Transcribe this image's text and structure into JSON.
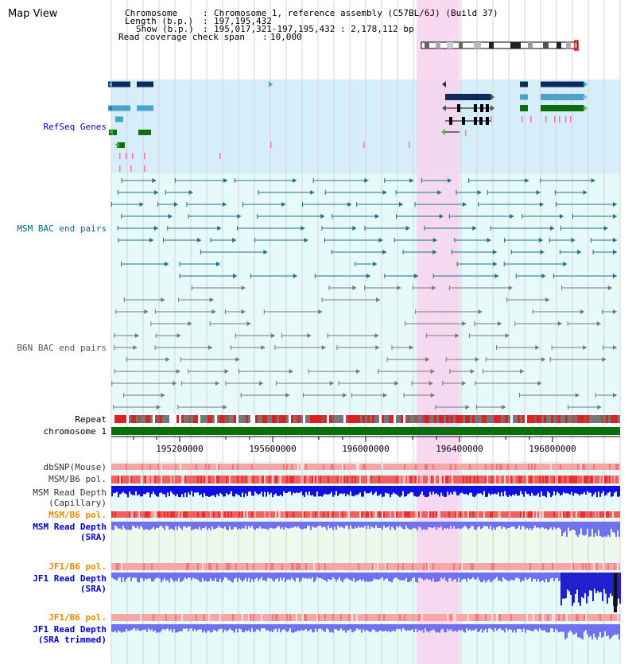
{
  "app_title": "Map View",
  "info": {
    "chromosome_label": "Chromosome",
    "chromosome_value": "Chromosome 1, reference assembly (C57BL/6J) (Build 37)",
    "length_label": "Length (b.p.)",
    "length_value": "197,195,432",
    "show_label": "Show (b.p.)",
    "show_value": "195,017,321-197,195,432 : 2,178,112 bp",
    "coverage_label": "Read coverage check span",
    "coverage_value": "10,000"
  },
  "tracks": {
    "refseq": "RefSeq Genes",
    "msm_bac": "MSM BAC end pairs",
    "b6n_bac": "B6N BAC end pairs",
    "repeat": "Repeat",
    "chromosome": "chromosome 1",
    "dbsnp": "dbSNP(Mouse)",
    "msm_pol": "MSM/B6 pol.",
    "msm_depth_cap_1": "MSM Read Depth",
    "msm_depth_cap_2": "(Capillary)",
    "msm_pol2": "MSM/B6 pol.",
    "msm_depth_sra_1": "MSM Read Depth",
    "msm_depth_sra_2": "(SRA)",
    "jf1_pol": "JF1/B6 pol.",
    "jf1_depth_sra_1": "JF1 Read Depth",
    "jf1_depth_sra_2": "(SRA)",
    "jf1_pol2": "JF1/B6 pol.",
    "jf1_depth_trim_1": "JF1 Read Depth",
    "jf1_depth_trim_2": "(SRA trimmed)"
  },
  "axis_ticks": [
    "195200000",
    "195600000",
    "196000000",
    "196400000",
    "196800000"
  ],
  "colors": {
    "refseq_bg": "#d6eef9",
    "bac_bg": "#e7fafa",
    "highlight": "#f7d2ef",
    "gene_dark": "#0b2a5e",
    "gene_light": "#4aa3c8",
    "gene_green": "#0a6e0a",
    "msm_bac": "#1f6f8b",
    "b6n_bac": "#777777",
    "chromosome_bar": "#0a6e0a",
    "capillary_depth": "#1010e0",
    "sra_depth": "#7070f0",
    "label_blue": "#0000cc",
    "label_orange": "#e88a00",
    "label_teal": "#006a8a"
  }
}
